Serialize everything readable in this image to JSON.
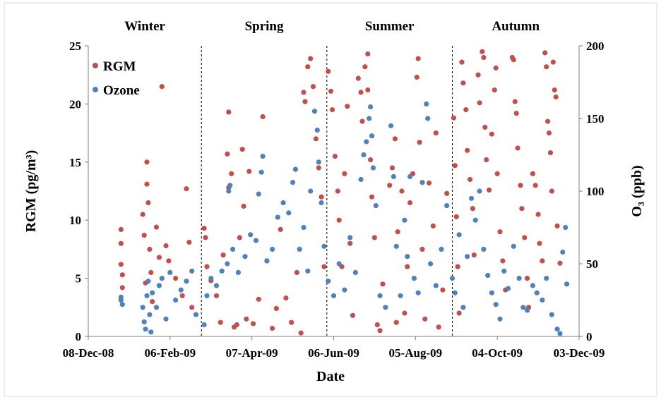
{
  "chart_data": {
    "type": "scatter",
    "xlabel": "Date",
    "ylabel_left": "RGM (pg/m³)",
    "ylabel_right": "O₃ (ppb)",
    "x_ticks": [
      "08-Dec-08",
      "06-Feb-09",
      "07-Apr-09",
      "06-Jun-09",
      "05-Aug-09",
      "04-Oct-09",
      "03-Dec-09"
    ],
    "xlim": [
      "2008-12-08",
      "2009-12-03"
    ],
    "ylim_left": [
      0,
      25
    ],
    "y_ticks_left": [
      0,
      5,
      10,
      15,
      20,
      25
    ],
    "ylim_right": [
      0,
      200
    ],
    "y_ticks_right": [
      0,
      50,
      100,
      150,
      200
    ],
    "seasons": [
      "Winter",
      "Spring",
      "Summer",
      "Autumn"
    ],
    "season_boundaries": [
      "2009-03-01",
      "2009-06-01",
      "2009-09-01"
    ],
    "legend_position": "top-left",
    "grid": false,
    "series": [
      {
        "name": "RGM",
        "axis": "left",
        "color": "#c0504d",
        "points": [
          [
            "2009-01-01",
            9.2
          ],
          [
            "2009-01-01",
            8.0
          ],
          [
            "2009-01-01",
            6.2
          ],
          [
            "2009-01-02",
            5.3
          ],
          [
            "2009-01-02",
            4.2
          ],
          [
            "2009-01-17",
            10.5
          ],
          [
            "2009-01-18",
            8.7
          ],
          [
            "2009-01-19",
            4.6
          ],
          [
            "2009-01-20",
            15.0
          ],
          [
            "2009-01-20",
            13.1
          ],
          [
            "2009-01-21",
            11.5
          ],
          [
            "2009-01-22",
            7.5
          ],
          [
            "2009-01-23",
            5.5
          ],
          [
            "2009-01-24",
            3.0
          ],
          [
            "2009-01-27",
            9.4
          ],
          [
            "2009-01-29",
            6.8
          ],
          [
            "2009-01-31",
            21.5
          ],
          [
            "2009-02-03",
            7.8
          ],
          [
            "2009-02-05",
            6.5
          ],
          [
            "2009-02-10",
            5.0
          ],
          [
            "2009-02-15",
            3.5
          ],
          [
            "2009-02-18",
            12.7
          ],
          [
            "2009-02-20",
            8.1
          ],
          [
            "2009-02-22",
            2.5
          ],
          [
            "2009-03-03",
            9.3
          ],
          [
            "2009-03-04",
            8.5
          ],
          [
            "2009-03-05",
            6.0
          ],
          [
            "2009-03-08",
            4.8
          ],
          [
            "2009-03-12",
            3.5
          ],
          [
            "2009-03-15",
            1.2
          ],
          [
            "2009-03-17",
            7.0
          ],
          [
            "2009-03-20",
            15.7
          ],
          [
            "2009-03-21",
            12.8
          ],
          [
            "2009-03-21",
            19.3
          ],
          [
            "2009-03-23",
            14.0
          ],
          [
            "2009-03-25",
            0.8
          ],
          [
            "2009-03-27",
            1.0
          ],
          [
            "2009-03-29",
            8.5
          ],
          [
            "2009-03-31",
            16.1
          ],
          [
            "2009-04-01",
            11.2
          ],
          [
            "2009-04-03",
            1.5
          ],
          [
            "2009-04-05",
            14.2
          ],
          [
            "2009-04-08",
            1.1
          ],
          [
            "2009-04-12",
            3.2
          ],
          [
            "2009-04-15",
            18.9
          ],
          [
            "2009-04-18",
            6.5
          ],
          [
            "2009-04-22",
            0.7
          ],
          [
            "2009-04-25",
            2.4
          ],
          [
            "2009-04-28",
            9.2
          ],
          [
            "2009-05-02",
            3.3
          ],
          [
            "2009-05-06",
            1.2
          ],
          [
            "2009-05-10",
            5.5
          ],
          [
            "2009-05-13",
            0.3
          ],
          [
            "2009-05-15",
            21.0
          ],
          [
            "2009-05-16",
            20.2
          ],
          [
            "2009-05-18",
            23.2
          ],
          [
            "2009-05-20",
            23.9
          ],
          [
            "2009-05-22",
            21.5
          ],
          [
            "2009-05-24",
            17.0
          ],
          [
            "2009-05-26",
            14.5
          ],
          [
            "2009-05-28",
            12.0
          ],
          [
            "2009-05-30",
            6.0
          ],
          [
            "2009-06-02",
            22.8
          ],
          [
            "2009-06-04",
            21.1
          ],
          [
            "2009-06-05",
            19.5
          ],
          [
            "2009-06-07",
            15.5
          ],
          [
            "2009-06-09",
            12.5
          ],
          [
            "2009-06-10",
            10.0
          ],
          [
            "2009-06-12",
            6.0
          ],
          [
            "2009-06-14",
            14.0
          ],
          [
            "2009-06-16",
            19.8
          ],
          [
            "2009-06-18",
            8.0
          ],
          [
            "2009-06-20",
            1.8
          ],
          [
            "2009-06-24",
            22.2
          ],
          [
            "2009-06-26",
            21.0
          ],
          [
            "2009-06-27",
            18.5
          ],
          [
            "2009-06-29",
            23.2
          ],
          [
            "2009-07-01",
            24.3
          ],
          [
            "2009-07-01",
            21.2
          ],
          [
            "2009-07-03",
            15.2
          ],
          [
            "2009-07-04",
            12.0
          ],
          [
            "2009-07-06",
            8.5
          ],
          [
            "2009-07-08",
            1.0
          ],
          [
            "2009-07-10",
            0.5
          ],
          [
            "2009-07-12",
            4.5
          ],
          [
            "2009-07-17",
            13.0
          ],
          [
            "2009-07-19",
            14.5
          ],
          [
            "2009-07-21",
            17.0
          ],
          [
            "2009-07-22",
            1.2
          ],
          [
            "2009-07-23",
            9.0
          ],
          [
            "2009-07-26",
            12.5
          ],
          [
            "2009-07-28",
            2.0
          ],
          [
            "2009-07-30",
            6.0
          ],
          [
            "2009-08-01",
            11.5
          ],
          [
            "2009-08-03",
            14.0
          ],
          [
            "2009-08-06",
            22.3
          ],
          [
            "2009-08-07",
            23.9
          ],
          [
            "2009-08-08",
            16.7
          ],
          [
            "2009-08-10",
            7.5
          ],
          [
            "2009-08-12",
            1.5
          ],
          [
            "2009-08-15",
            13.2
          ],
          [
            "2009-08-18",
            9.5
          ],
          [
            "2009-08-20",
            17.5
          ],
          [
            "2009-08-22",
            0.8
          ],
          [
            "2009-08-25",
            4.0
          ],
          [
            "2009-08-28",
            12.3
          ],
          [
            "2009-09-02",
            18.8
          ],
          [
            "2009-09-03",
            14.7
          ],
          [
            "2009-09-04",
            10.3
          ],
          [
            "2009-09-05",
            6.0
          ],
          [
            "2009-09-06",
            2.0
          ],
          [
            "2009-09-08",
            23.6
          ],
          [
            "2009-09-09",
            21.8
          ],
          [
            "2009-09-11",
            19.5
          ],
          [
            "2009-09-12",
            16.0
          ],
          [
            "2009-09-14",
            13.5
          ],
          [
            "2009-09-16",
            11.0
          ],
          [
            "2009-09-17",
            7.0
          ],
          [
            "2009-09-20",
            22.5
          ],
          [
            "2009-09-21",
            20.1
          ],
          [
            "2009-09-23",
            24.5
          ],
          [
            "2009-09-24",
            24.0
          ],
          [
            "2009-09-25",
            18.0
          ],
          [
            "2009-09-26",
            15.2
          ],
          [
            "2009-09-28",
            12.6
          ],
          [
            "2009-09-30",
            17.4
          ],
          [
            "2009-10-02",
            21.2
          ],
          [
            "2009-10-03",
            23.1
          ],
          [
            "2009-10-04",
            14.0
          ],
          [
            "2009-10-06",
            9.0
          ],
          [
            "2009-10-08",
            6.5
          ],
          [
            "2009-10-10",
            4.0
          ],
          [
            "2009-10-15",
            24.0
          ],
          [
            "2009-10-16",
            23.8
          ],
          [
            "2009-10-17",
            20.2
          ],
          [
            "2009-10-18",
            19.2
          ],
          [
            "2009-10-19",
            16.2
          ],
          [
            "2009-10-21",
            13.0
          ],
          [
            "2009-10-22",
            11.0
          ],
          [
            "2009-10-24",
            8.5
          ],
          [
            "2009-10-26",
            5.0
          ],
          [
            "2009-10-27",
            2.5
          ],
          [
            "2009-10-30",
            14.0
          ],
          [
            "2009-11-01",
            13.0
          ],
          [
            "2009-11-03",
            10.5
          ],
          [
            "2009-11-04",
            8.0
          ],
          [
            "2009-11-06",
            6.5
          ],
          [
            "2009-11-08",
            24.4
          ],
          [
            "2009-11-09",
            23.2
          ],
          [
            "2009-11-10",
            18.5
          ],
          [
            "2009-11-11",
            17.5
          ],
          [
            "2009-11-12",
            15.8
          ],
          [
            "2009-11-13",
            12.5
          ],
          [
            "2009-11-14",
            23.6
          ],
          [
            "2009-11-15",
            21.2
          ],
          [
            "2009-11-16",
            20.6
          ],
          [
            "2009-11-17",
            9.5
          ],
          [
            "2009-11-19",
            6.3
          ]
        ]
      },
      {
        "name": "Ozone",
        "axis": "right",
        "color": "#4f81bd",
        "points": [
          [
            "2009-01-01",
            27
          ],
          [
            "2009-01-01",
            25
          ],
          [
            "2009-01-02",
            22
          ],
          [
            "2009-01-17",
            20
          ],
          [
            "2009-01-18",
            10
          ],
          [
            "2009-01-19",
            5
          ],
          [
            "2009-01-20",
            28
          ],
          [
            "2009-01-21",
            38
          ],
          [
            "2009-01-22",
            15
          ],
          [
            "2009-01-23",
            3
          ],
          [
            "2009-01-24",
            30
          ],
          [
            "2009-01-27",
            20
          ],
          [
            "2009-01-29",
            35
          ],
          [
            "2009-01-31",
            40
          ],
          [
            "2009-02-03",
            12
          ],
          [
            "2009-02-06",
            44
          ],
          [
            "2009-02-10",
            25
          ],
          [
            "2009-02-14",
            32
          ],
          [
            "2009-02-18",
            38
          ],
          [
            "2009-02-22",
            45
          ],
          [
            "2009-02-25",
            15
          ],
          [
            "2009-03-03",
            8
          ],
          [
            "2009-03-05",
            28
          ],
          [
            "2009-03-08",
            40
          ],
          [
            "2009-03-12",
            35
          ],
          [
            "2009-03-16",
            45
          ],
          [
            "2009-03-20",
            50
          ],
          [
            "2009-03-21",
            100
          ],
          [
            "2009-03-22",
            104
          ],
          [
            "2009-03-24",
            60
          ],
          [
            "2009-03-28",
            44
          ],
          [
            "2009-04-02",
            55
          ],
          [
            "2009-04-06",
            70
          ],
          [
            "2009-04-10",
            66
          ],
          [
            "2009-04-12",
            98
          ],
          [
            "2009-04-14",
            113
          ],
          [
            "2009-04-15",
            124
          ],
          [
            "2009-04-18",
            52
          ],
          [
            "2009-04-22",
            60
          ],
          [
            "2009-04-26",
            82
          ],
          [
            "2009-04-30",
            92
          ],
          [
            "2009-05-04",
            85
          ],
          [
            "2009-05-07",
            106
          ],
          [
            "2009-05-09",
            115
          ],
          [
            "2009-05-12",
            60
          ],
          [
            "2009-05-15",
            75
          ],
          [
            "2009-05-18",
            45
          ],
          [
            "2009-05-20",
            100
          ],
          [
            "2009-05-23",
            155
          ],
          [
            "2009-05-25",
            142
          ],
          [
            "2009-05-26",
            120
          ],
          [
            "2009-05-28",
            92
          ],
          [
            "2009-05-30",
            62
          ],
          [
            "2009-06-02",
            38
          ],
          [
            "2009-06-06",
            28
          ],
          [
            "2009-06-10",
            50
          ],
          [
            "2009-06-14",
            32
          ],
          [
            "2009-06-18",
            68
          ],
          [
            "2009-06-22",
            44
          ],
          [
            "2009-06-26",
            108
          ],
          [
            "2009-06-28",
            125
          ],
          [
            "2009-06-30",
            134
          ],
          [
            "2009-07-02",
            150
          ],
          [
            "2009-07-03",
            158
          ],
          [
            "2009-07-04",
            138
          ],
          [
            "2009-07-05",
            116
          ],
          [
            "2009-07-07",
            90
          ],
          [
            "2009-07-10",
            28
          ],
          [
            "2009-07-14",
            20
          ],
          [
            "2009-07-18",
            145
          ],
          [
            "2009-07-20",
            110
          ],
          [
            "2009-07-22",
            62
          ],
          [
            "2009-07-25",
            28
          ],
          [
            "2009-07-28",
            80
          ],
          [
            "2009-07-30",
            55
          ],
          [
            "2009-08-01",
            110
          ],
          [
            "2009-08-04",
            40
          ],
          [
            "2009-08-07",
            30
          ],
          [
            "2009-08-10",
            106
          ],
          [
            "2009-08-13",
            160
          ],
          [
            "2009-08-14",
            150
          ],
          [
            "2009-08-16",
            50
          ],
          [
            "2009-08-20",
            35
          ],
          [
            "2009-08-24",
            60
          ],
          [
            "2009-08-28",
            90
          ],
          [
            "2009-09-01",
            40
          ],
          [
            "2009-09-03",
            30
          ],
          [
            "2009-09-06",
            70
          ],
          [
            "2009-09-09",
            20
          ],
          [
            "2009-09-12",
            55
          ],
          [
            "2009-09-15",
            95
          ],
          [
            "2009-09-18",
            80
          ],
          [
            "2009-09-21",
            100
          ],
          [
            "2009-09-24",
            60
          ],
          [
            "2009-09-27",
            42
          ],
          [
            "2009-09-30",
            30
          ],
          [
            "2009-10-03",
            22
          ],
          [
            "2009-10-06",
            12
          ],
          [
            "2009-10-09",
            45
          ],
          [
            "2009-10-12",
            33
          ],
          [
            "2009-10-16",
            62
          ],
          [
            "2009-10-20",
            40
          ],
          [
            "2009-10-23",
            20
          ],
          [
            "2009-10-26",
            18
          ],
          [
            "2009-10-30",
            35
          ],
          [
            "2009-11-02",
            30
          ],
          [
            "2009-11-06",
            25
          ],
          [
            "2009-11-09",
            40
          ],
          [
            "2009-11-13",
            15
          ],
          [
            "2009-11-17",
            5
          ],
          [
            "2009-11-19",
            2
          ],
          [
            "2009-11-21",
            58
          ],
          [
            "2009-11-23",
            75
          ],
          [
            "2009-11-24",
            36
          ]
        ]
      }
    ]
  }
}
